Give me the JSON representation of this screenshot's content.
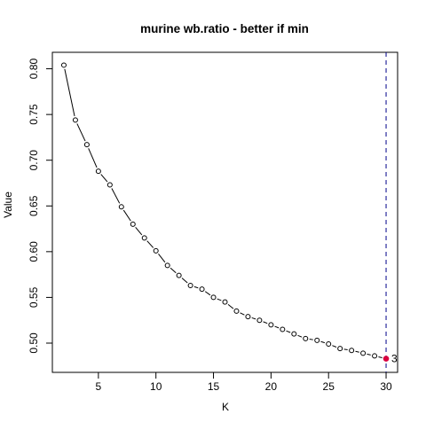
{
  "chart_data": {
    "type": "scatter",
    "title": "murine wb.ratio - better if  min",
    "xlabel": "K",
    "ylabel": "Value",
    "xlim": [
      1.0,
      31.0
    ],
    "ylim": [
      0.468,
      0.818
    ],
    "x_ticks": [
      5,
      10,
      15,
      20,
      25,
      30
    ],
    "y_ticks": [
      0.5,
      0.55,
      0.6,
      0.65,
      0.7,
      0.75,
      0.8
    ],
    "x_tick_labels": [
      "5",
      "10",
      "15",
      "20",
      "25",
      "30"
    ],
    "y_tick_labels": [
      "0.50",
      "0.55",
      "0.60",
      "0.65",
      "0.70",
      "0.75",
      "0.80"
    ],
    "grid": false,
    "series": [
      {
        "x": [
          2,
          3,
          4,
          5,
          6,
          7,
          8,
          9,
          10,
          11,
          12,
          13,
          14,
          15,
          16,
          17,
          18,
          19,
          20,
          21,
          22,
          23,
          24,
          25,
          26,
          27,
          28,
          29,
          30
        ],
        "values": [
          0.804,
          0.744,
          0.717,
          0.688,
          0.673,
          0.649,
          0.63,
          0.615,
          0.601,
          0.585,
          0.574,
          0.563,
          0.559,
          0.55,
          0.545,
          0.535,
          0.529,
          0.525,
          0.52,
          0.515,
          0.51,
          0.505,
          0.503,
          0.499,
          0.494,
          0.492,
          0.489,
          0.486,
          0.483
        ]
      }
    ],
    "highlight": {
      "x": 30,
      "value": 0.483,
      "label": "3",
      "color": "#d9003f"
    },
    "vline": {
      "x": 30,
      "color": "#00008b",
      "style": "dashed"
    },
    "colors": {
      "points": "#000000",
      "line": "#000000"
    }
  }
}
